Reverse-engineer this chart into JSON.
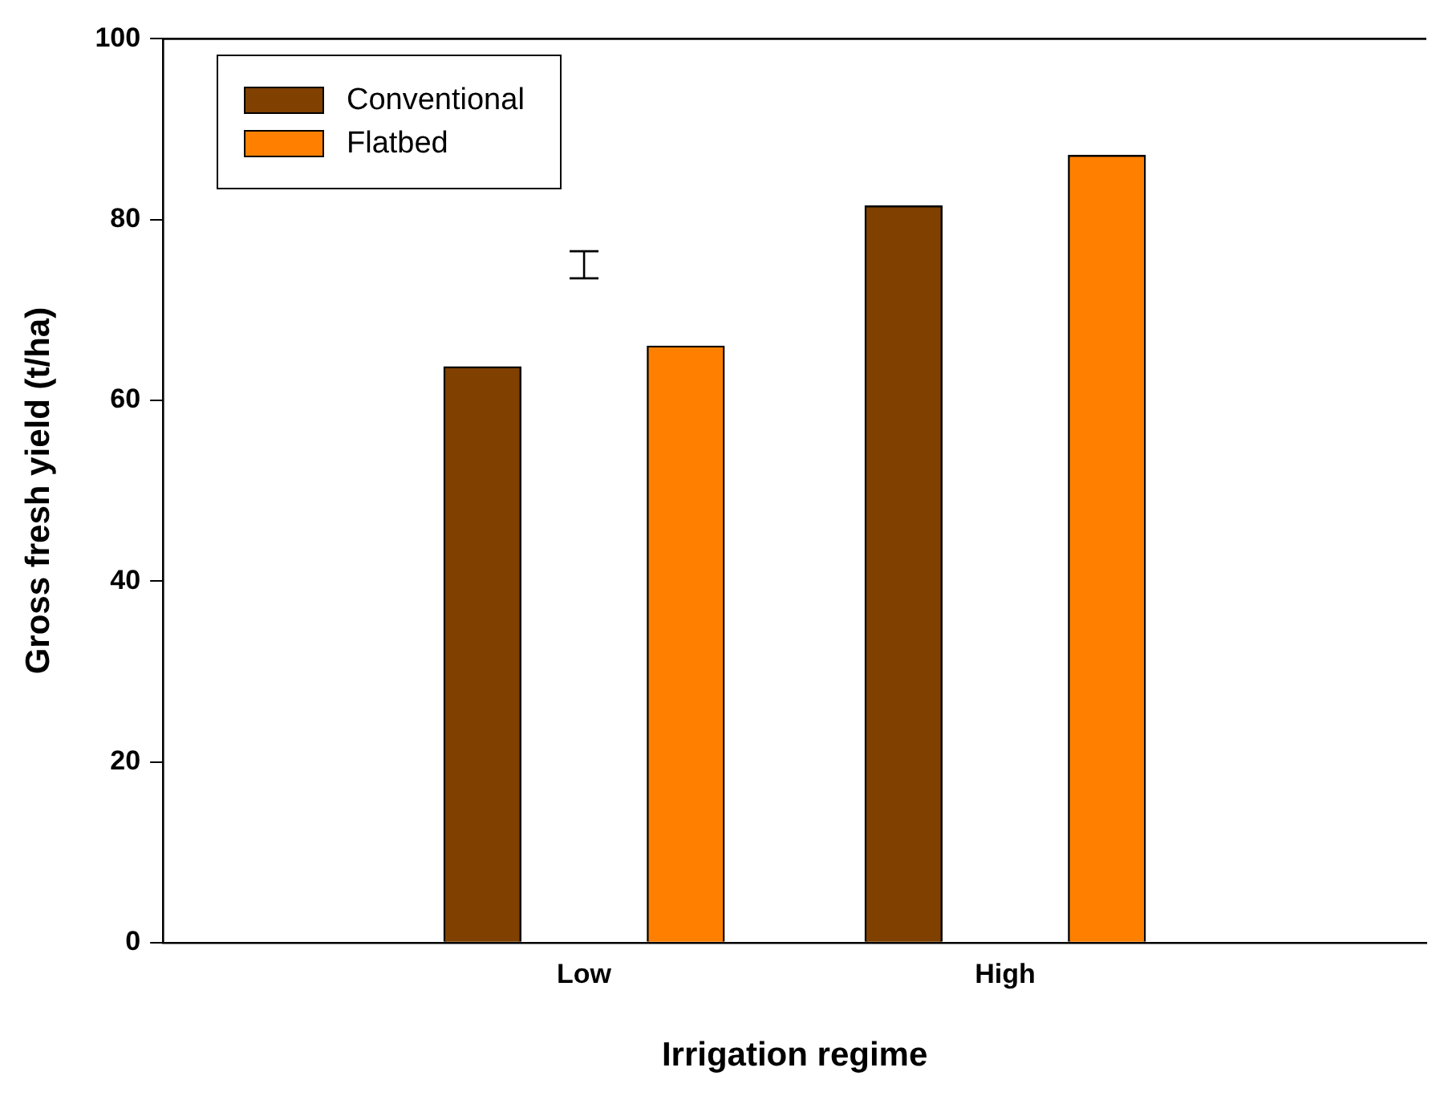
{
  "chart_data": {
    "type": "bar",
    "xlabel": "Irrigation regime",
    "ylabel": "Gross fresh yield (t/ha)",
    "categories": [
      "Low",
      "High"
    ],
    "series": [
      {
        "name": "Conventional",
        "color": "#804000",
        "values": [
          63.7,
          81.5
        ]
      },
      {
        "name": "Flatbed",
        "color": "#ff8000",
        "values": [
          66.0,
          87.1
        ]
      },
      {
        "type": "scatter",
        "color": "#000000",
        "x": [
          "Low"
        ],
        "values": [
          75
        ],
        "errors": [
          1.5
        ]
      }
    ],
    "ylim": [
      0,
      100
    ],
    "yticks": [
      0,
      20,
      40,
      60,
      80,
      100
    ],
    "legend": "top left"
  }
}
